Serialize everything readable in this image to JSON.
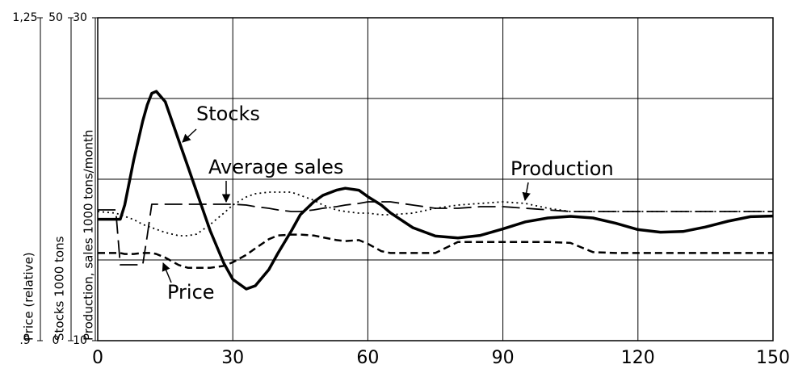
{
  "chart_data": {
    "type": "line",
    "x": [
      0,
      4,
      5,
      6,
      8,
      10,
      11,
      12,
      13,
      15,
      18,
      20,
      22,
      25,
      28,
      30,
      33,
      35,
      38,
      40,
      43,
      45,
      48,
      50,
      53,
      55,
      58,
      60,
      63,
      65,
      70,
      75,
      80,
      85,
      90,
      95,
      100,
      105,
      110,
      115,
      120,
      125,
      130,
      135,
      140,
      145,
      150
    ],
    "xlim": [
      0,
      150
    ],
    "xticks": [
      0,
      30,
      60,
      90,
      120,
      150
    ],
    "ylim": [
      10,
      30
    ],
    "yticks": [
      10,
      30
    ],
    "ygrid": [
      15,
      20,
      25
    ],
    "y2lim": [
      0,
      50
    ],
    "y2ticks": [
      0,
      50
    ],
    "y3lim": [
      0.9,
      1.25
    ],
    "y3ticks": [
      {
        "value": 0.9,
        "label": ".9"
      },
      {
        "value": 1.25,
        "label": "1,25"
      }
    ],
    "ylabel": "Production, sales 1000 tons/month",
    "y2label": "Stocks 1000 tons",
    "y3label": "Price (relative)",
    "grid": true,
    "series": [
      {
        "name": "Stocks",
        "axis": "y2",
        "color": "#000000",
        "style": "thick",
        "values": [
          18.8,
          18.8,
          18.8,
          21,
          28,
          34,
          36.5,
          38.3,
          38.6,
          37,
          31,
          27,
          23,
          17,
          12,
          9.5,
          8,
          8.5,
          11,
          13.5,
          17,
          19.5,
          21.5,
          22.5,
          23.3,
          23.6,
          23.3,
          22.3,
          21,
          19.8,
          17.5,
          16.2,
          15.9,
          16.3,
          17.3,
          18.4,
          19,
          19.25,
          19,
          18.2,
          17.2,
          16.8,
          16.9,
          17.6,
          18.5,
          19.2,
          19.3
        ]
      },
      {
        "name": "Average sales",
        "color": "#000000",
        "style": "long-dashed",
        "values": [
          18.1,
          18.1,
          14.7,
          14.7,
          14.7,
          14.7,
          16.5,
          18.45,
          18.45,
          18.45,
          18.45,
          18.45,
          18.45,
          18.45,
          18.45,
          18.45,
          18.4,
          18.3,
          18.2,
          18.1,
          18,
          18,
          18.1,
          18.2,
          18.3,
          18.4,
          18.5,
          18.6,
          18.6,
          18.6,
          18.4,
          18.2,
          18.2,
          18.3,
          18.3,
          18.2,
          18.1,
          18,
          18,
          18,
          18,
          18,
          18,
          18,
          18,
          18,
          18
        ]
      },
      {
        "name": "Production",
        "color": "#000000",
        "style": "dotted",
        "values": [
          18,
          17.9,
          17.8,
          17.7,
          17.5,
          17.2,
          17.1,
          17,
          16.9,
          16.7,
          16.5,
          16.5,
          16.6,
          17.2,
          17.9,
          18.4,
          18.9,
          19.1,
          19.2,
          19.2,
          19.2,
          19,
          18.7,
          18.4,
          18.1,
          18,
          17.9,
          17.9,
          17.8,
          17.8,
          17.9,
          18.2,
          18.4,
          18.5,
          18.6,
          18.5,
          18.2,
          18,
          18,
          18,
          18,
          18,
          18,
          18,
          18,
          18,
          18
        ]
      },
      {
        "name": "Price",
        "axis": "y3",
        "color": "#000000",
        "style": "dashed",
        "values": [
          0.995,
          0.995,
          0.995,
          0.994,
          0.994,
          0.995,
          0.995,
          0.995,
          0.994,
          0.99,
          0.982,
          0.979,
          0.979,
          0.979,
          0.981,
          0.985,
          0.993,
          1.0,
          1.01,
          1.014,
          1.015,
          1.015,
          1.014,
          1.012,
          1.009,
          1.008,
          1.009,
          1.005,
          0.997,
          0.995,
          0.995,
          0.995,
          1.007,
          1.007,
          1.007,
          1.007,
          1.007,
          1.006,
          0.996,
          0.995,
          0.995,
          0.995,
          0.995,
          0.995,
          0.995,
          0.995,
          0.995
        ]
      }
    ]
  }
}
